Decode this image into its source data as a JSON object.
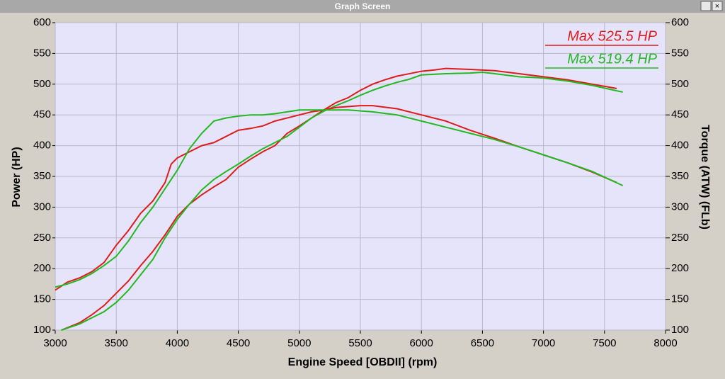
{
  "window_title": "Graph Screen",
  "chart_data": {
    "type": "line",
    "xlabel": "Engine Speed [OBDII] (rpm)",
    "ylabel": "Power (HP)",
    "y2label": "Torque (ATW) (FLb)",
    "xlim": [
      3000,
      8000
    ],
    "xticks": [
      3000,
      3500,
      4000,
      4500,
      5000,
      5500,
      6000,
      6500,
      7000,
      7500,
      8000
    ],
    "ylim": [
      100,
      600
    ],
    "yticks": [
      100,
      150,
      200,
      250,
      300,
      350,
      400,
      450,
      500,
      550,
      600
    ],
    "y2lim": [
      100,
      600
    ],
    "y2ticks": [
      100,
      150,
      200,
      250,
      300,
      350,
      400,
      450,
      500,
      550,
      600
    ],
    "grid": true,
    "series": [
      {
        "name": "Max 525.5 HP",
        "color": "#dd1c1c",
        "x": [
          3050,
          3200,
          3300,
          3400,
          3500,
          3600,
          3700,
          3800,
          3900,
          4000,
          4100,
          4200,
          4300,
          4400,
          4500,
          4600,
          4700,
          4800,
          4900,
          5000,
          5100,
          5200,
          5300,
          5400,
          5500,
          5600,
          5700,
          5800,
          5900,
          6000,
          6100,
          6200,
          6400,
          6600,
          6800,
          7000,
          7200,
          7400,
          7600
        ],
        "values": [
          100,
          112,
          125,
          140,
          160,
          180,
          205,
          228,
          255,
          285,
          305,
          320,
          333,
          345,
          365,
          378,
          390,
          400,
          420,
          432,
          445,
          458,
          470,
          478,
          490,
          500,
          507,
          513,
          517,
          521,
          523,
          525.5,
          524,
          522,
          517,
          512,
          507,
          500,
          493
        ]
      },
      {
        "name": "Max 519.4 HP",
        "color": "#22b822",
        "x": [
          3050,
          3200,
          3300,
          3400,
          3500,
          3600,
          3700,
          3800,
          3900,
          4000,
          4100,
          4200,
          4300,
          4400,
          4500,
          4600,
          4700,
          4800,
          4900,
          5000,
          5100,
          5200,
          5300,
          5400,
          5500,
          5600,
          5700,
          5800,
          5900,
          6000,
          6200,
          6400,
          6500,
          6600,
          6800,
          7000,
          7200,
          7400,
          7650
        ],
        "values": [
          100,
          110,
          120,
          130,
          145,
          165,
          190,
          215,
          250,
          280,
          305,
          328,
          345,
          358,
          370,
          383,
          395,
          405,
          415,
          430,
          445,
          456,
          465,
          473,
          482,
          490,
          497,
          503,
          508,
          515,
          517,
          518,
          519.4,
          517,
          512,
          510,
          505,
          498,
          487
        ]
      },
      {
        "axis": "y2",
        "color": "#dd1c1c",
        "x": [
          3000,
          3100,
          3200,
          3300,
          3400,
          3500,
          3600,
          3700,
          3800,
          3900,
          3950,
          4000,
          4100,
          4200,
          4300,
          4400,
          4500,
          4600,
          4700,
          4800,
          4900,
          5000,
          5100,
          5200,
          5300,
          5500,
          5600,
          5800,
          6000,
          6200,
          6400,
          6600,
          6800,
          7000,
          7200,
          7400,
          7600
        ],
        "values": [
          165,
          178,
          185,
          195,
          210,
          238,
          262,
          290,
          310,
          340,
          370,
          380,
          390,
          400,
          405,
          415,
          425,
          428,
          432,
          440,
          445,
          450,
          455,
          458,
          462,
          465,
          465,
          460,
          450,
          440,
          425,
          412,
          398,
          385,
          372,
          357,
          340
        ]
      },
      {
        "axis": "y2",
        "color": "#22b822",
        "x": [
          3000,
          3100,
          3200,
          3300,
          3400,
          3500,
          3600,
          3700,
          3800,
          3900,
          4000,
          4100,
          4200,
          4300,
          4400,
          4500,
          4600,
          4700,
          4800,
          4900,
          5000,
          5200,
          5400,
          5600,
          5800,
          6000,
          6200,
          6400,
          6600,
          6800,
          7000,
          7200,
          7400,
          7650
        ],
        "values": [
          170,
          175,
          182,
          192,
          205,
          220,
          245,
          275,
          300,
          330,
          360,
          395,
          420,
          440,
          445,
          448,
          450,
          450,
          452,
          455,
          458,
          458,
          458,
          455,
          450,
          440,
          430,
          420,
          410,
          398,
          385,
          372,
          358,
          335
        ]
      }
    ]
  }
}
